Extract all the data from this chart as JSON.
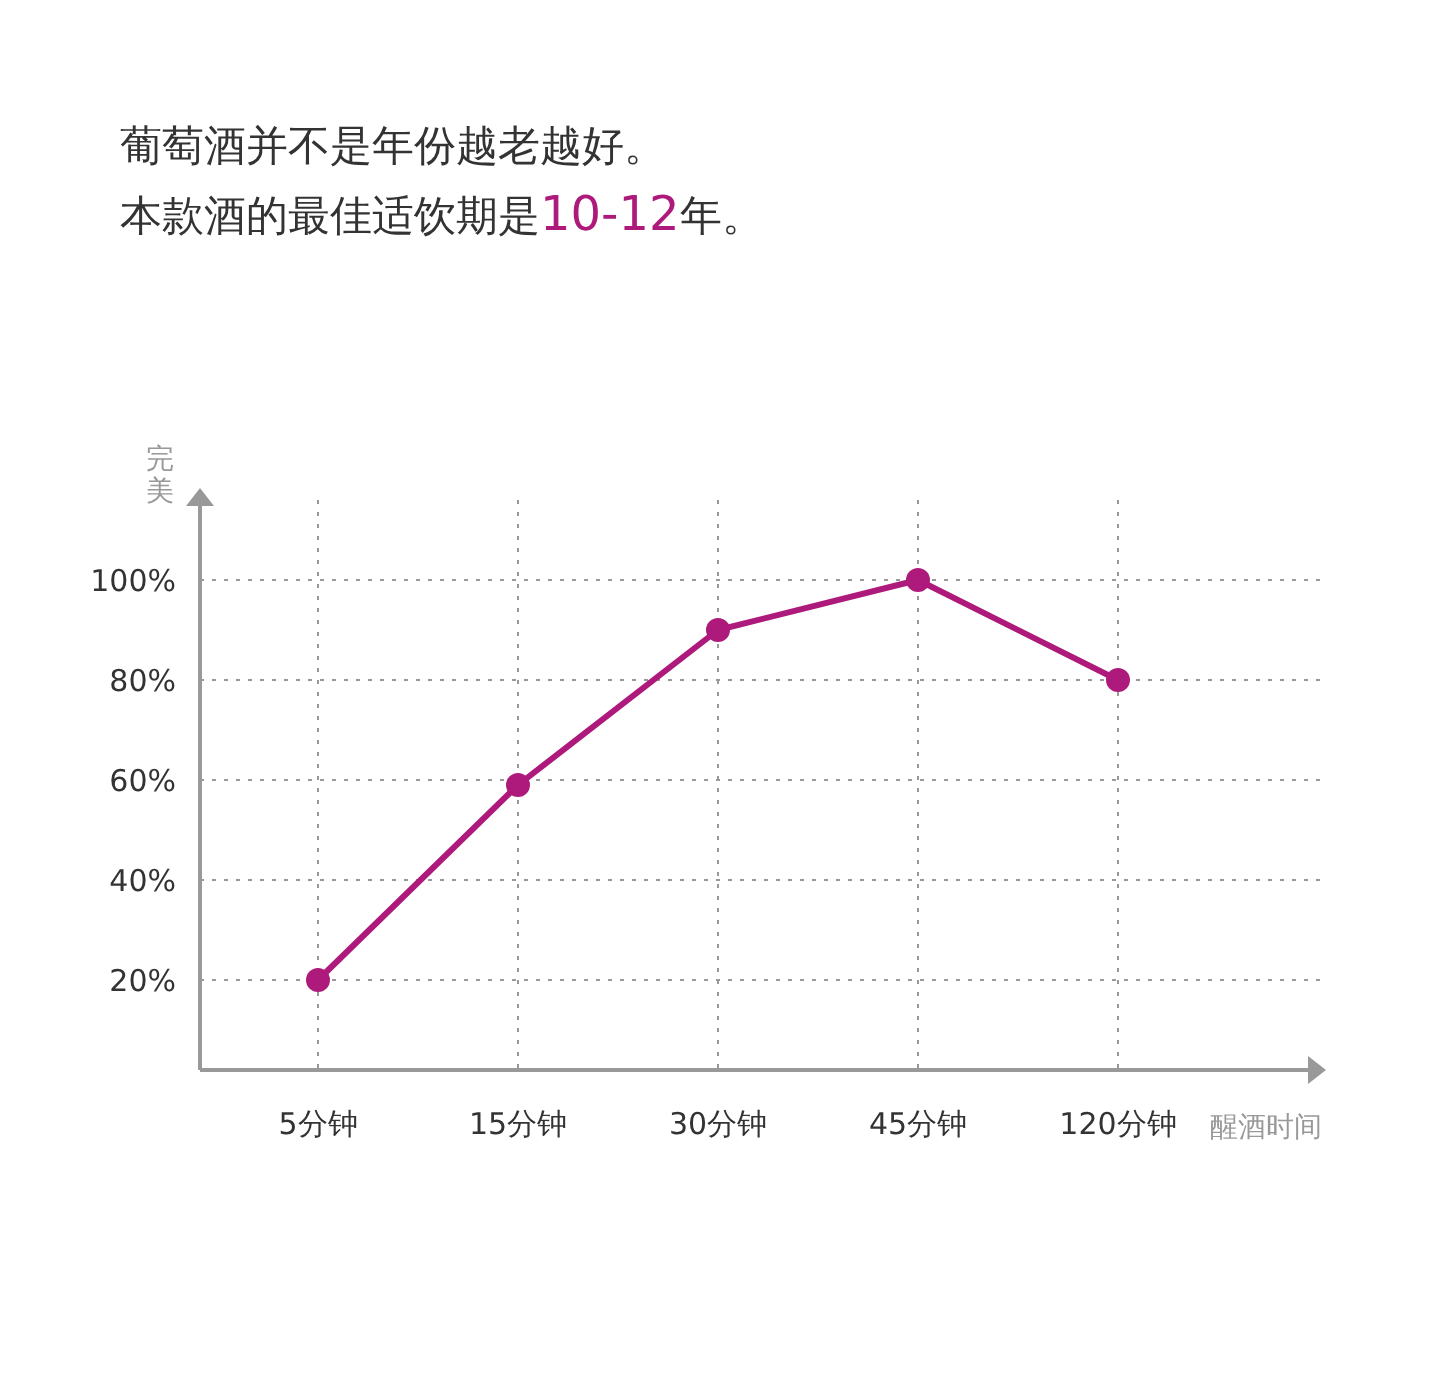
{
  "chart_data": {
    "type": "line",
    "title": "葡萄酒并不是年份越老越好。",
    "subtitle": "本款酒的最佳适饮期是10-12年。",
    "xlabel": "醒酒时间",
    "ylabel": "完美",
    "categories": [
      "5分钟",
      "15分钟",
      "30分钟",
      "45分钟",
      "120分钟"
    ],
    "series": [
      {
        "color": "#ae1a7b",
        "values": [
          20,
          59,
          90,
          100,
          80
        ]
      }
    ],
    "ylim": [
      2,
      116
    ],
    "yticks": [
      {
        "value": 20,
        "label": "20%"
      },
      {
        "value": 40,
        "label": "40%"
      },
      {
        "value": 60,
        "label": "60%"
      },
      {
        "value": 80,
        "label": "80%"
      },
      {
        "value": 100,
        "label": "100%"
      }
    ],
    "grid": true,
    "marker": "circle",
    "line_style": "solid"
  }
}
